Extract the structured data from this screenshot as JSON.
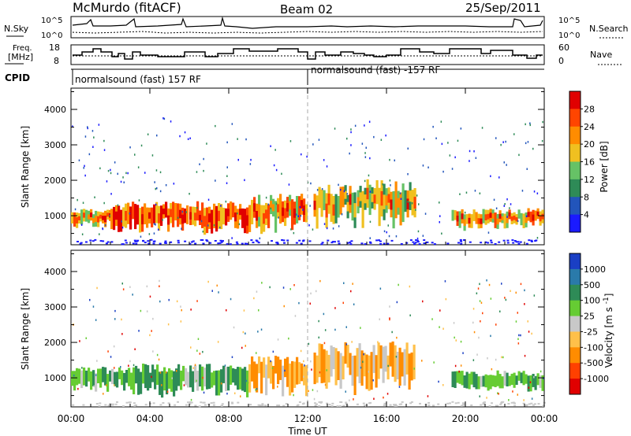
{
  "header": {
    "station": "McMurdo (fitACF)",
    "beam": "Beam 02",
    "date": "25/Sep/2011"
  },
  "noise_panel": {
    "left_label": "N.Sky",
    "right_label": "N.Search",
    "left_ticks": [
      "10^5",
      "10^0"
    ],
    "right_ticks": [
      "10^5",
      "10^0"
    ]
  },
  "freq_panel": {
    "left_label_line1": "Freq.",
    "left_label_line2": "[MHz]",
    "right_label": "Nave",
    "left_ticks": [
      "18",
      "8"
    ],
    "right_ticks": [
      "60",
      "0"
    ]
  },
  "cpid": {
    "label": "CPID",
    "segments": [
      "normalsound (fast) 157 RF",
      "normalsound (fast) -157 RF"
    ],
    "change_hour": 12
  },
  "power_panel": {
    "ylabel": "Slant Range [km]",
    "yticks": [
      "1000",
      "2000",
      "3000",
      "4000"
    ],
    "colorbar_label": "Power [dB]",
    "colorbar_ticks": [
      "4",
      "8",
      "12",
      "16",
      "20",
      "24",
      "28"
    ],
    "colors": [
      "#1a1aff",
      "#2255bb",
      "#2e8b57",
      "#66c266",
      "#f0c020",
      "#ff8c00",
      "#ff4500",
      "#e00000"
    ]
  },
  "velocity_panel": {
    "ylabel": "Slant Range [km]",
    "yticks": [
      "1000",
      "2000",
      "3000",
      "4000"
    ],
    "colorbar_label": "Velocity [m s^-1]",
    "colorbar_ticks": [
      "1000",
      "500",
      "100",
      "25",
      "-25",
      "-100",
      "-500",
      "-1000"
    ],
    "colors": [
      "#1a3fc4",
      "#2a7aaa",
      "#2e8b57",
      "#66cc33",
      "#c8c8c8",
      "#ffc04a",
      "#ff8c00",
      "#ff4000",
      "#e00000"
    ]
  },
  "xaxis": {
    "label": "Time UT",
    "ticks": [
      "00:00",
      "04:00",
      "08:00",
      "12:00",
      "16:00",
      "20:00",
      "00:00"
    ]
  },
  "chart_data": {
    "type": "heatmap",
    "title": "McMurdo (fitACF) Beam 02 25/Sep/2011",
    "xlabel": "Time UT",
    "ylabel": "Slant Range [km]",
    "xlim_hours": [
      0,
      24
    ],
    "ylim_km": [
      180,
      4600
    ],
    "panels": [
      {
        "name": "Power [dB]",
        "colorbar": [
          4,
          8,
          12,
          16,
          20,
          24,
          28
        ],
        "echo_regions": [
          {
            "t_start": 0.0,
            "t_end": 2.0,
            "range_low": 700,
            "range_high": 1200,
            "level": 24
          },
          {
            "t_start": 2.0,
            "t_end": 6.0,
            "range_low": 600,
            "range_high": 1400,
            "level": 26
          },
          {
            "t_start": 6.0,
            "t_end": 9.0,
            "range_low": 600,
            "range_high": 1400,
            "level": 28
          },
          {
            "t_start": 9.0,
            "t_end": 12.0,
            "range_low": 650,
            "range_high": 1600,
            "level": 24
          },
          {
            "t_start": 12.3,
            "t_end": 14.5,
            "range_low": 800,
            "range_high": 1900,
            "level": 20
          },
          {
            "t_start": 14.5,
            "t_end": 17.5,
            "range_low": 800,
            "range_high": 2000,
            "level": 20
          },
          {
            "t_start": 19.3,
            "t_end": 24.0,
            "range_low": 700,
            "range_high": 1200,
            "level": 24
          }
        ]
      },
      {
        "name": "Velocity [m s^-1]",
        "colorbar": [
          1000,
          500,
          100,
          25,
          -25,
          -100,
          -500,
          -1000
        ],
        "echo_regions": [
          {
            "t_start": 0.0,
            "t_end": 3.0,
            "range_low": 700,
            "range_high": 1300,
            "level": 80
          },
          {
            "t_start": 3.0,
            "t_end": 9.0,
            "range_low": 600,
            "range_high": 1400,
            "level": 200
          },
          {
            "t_start": 9.0,
            "t_end": 12.0,
            "range_low": 650,
            "range_high": 1600,
            "level": -150
          },
          {
            "t_start": 12.3,
            "t_end": 17.5,
            "range_low": 800,
            "range_high": 2000,
            "level": -200
          },
          {
            "t_start": 19.3,
            "t_end": 24.0,
            "range_low": 700,
            "range_high": 1200,
            "level": 100
          }
        ]
      }
    ]
  }
}
